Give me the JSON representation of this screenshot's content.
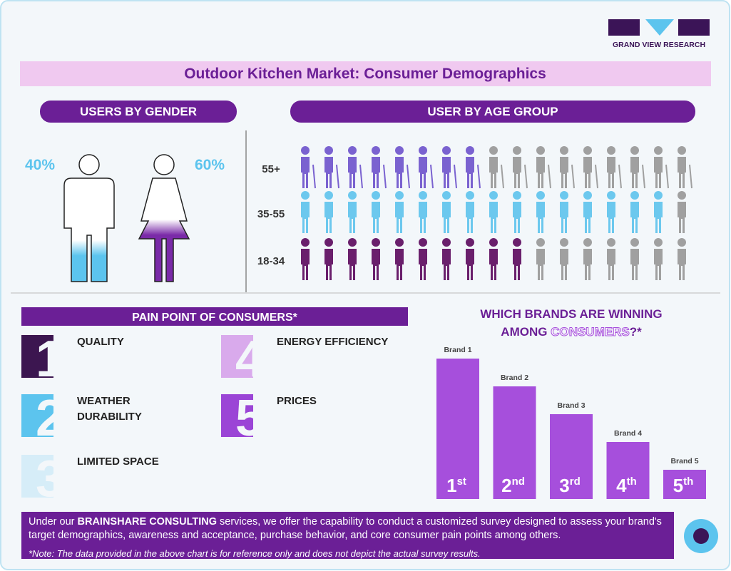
{
  "logo": "GRAND VIEW RESEARCH",
  "title": "Outdoor Kitchen Market: Consumer Demographics",
  "gender": {
    "heading": "USERS BY GENDER",
    "male": {
      "value": 40,
      "label": "40%"
    },
    "female": {
      "value": 60,
      "label": "60%"
    }
  },
  "age": {
    "heading": "USER BY AGE GROUP",
    "rows": [
      {
        "label": "55+",
        "highlighted": 8,
        "total": 17,
        "color": "#7a62d0"
      },
      {
        "label": "35-55",
        "highlighted": 16,
        "total": 17,
        "color": "#6cc8ee"
      },
      {
        "label": "18-34",
        "highlighted": 10,
        "total": 17,
        "color": "#6a1f6c"
      }
    ]
  },
  "pain_points": {
    "heading": "PAIN POINT OF CONSUMERS*",
    "items": [
      {
        "number": 1,
        "label": "QUALITY",
        "color": "#3c1650"
      },
      {
        "number": 2,
        "label": "WEATHER DURABILITY",
        "color": "#5cc4ee"
      },
      {
        "number": 3,
        "label": "LIMITED SPACE",
        "color": "#d6edf8"
      },
      {
        "number": 4,
        "label": "ENERGY EFFICIENCY",
        "color": "#d9aaec"
      },
      {
        "number": 5,
        "label": "PRICES",
        "color": "#9b45d6"
      }
    ]
  },
  "brands": {
    "heading_line1": "WHICH BRANDS ARE WINNING",
    "heading_line2a": "AMONG ",
    "heading_line2b": "CONSUMERS",
    "heading_line2c": "?*",
    "color": "#a64fdc",
    "items": [
      {
        "name": "Brand 1",
        "rank": 1,
        "suffix": "st"
      },
      {
        "name": "Brand 2",
        "rank": 2,
        "suffix": "nd"
      },
      {
        "name": "Brand 3",
        "rank": 3,
        "suffix": "rd"
      },
      {
        "name": "Brand 4",
        "rank": 4,
        "suffix": "th"
      },
      {
        "name": "Brand 5",
        "rank": 5,
        "suffix": "th"
      }
    ]
  },
  "footer": {
    "text_before": "Under our ",
    "text_bold": "BRAINSHARE CONSULTING",
    "text_after": " services, we offer the capability to conduct a customized survey designed to assess your brand's target demographics, awareness and acceptance, purchase behavior, and core consumer pain points among others.",
    "note": "*Note: The data provided in the above chart is for reference only and does not depict the actual survey results."
  }
}
